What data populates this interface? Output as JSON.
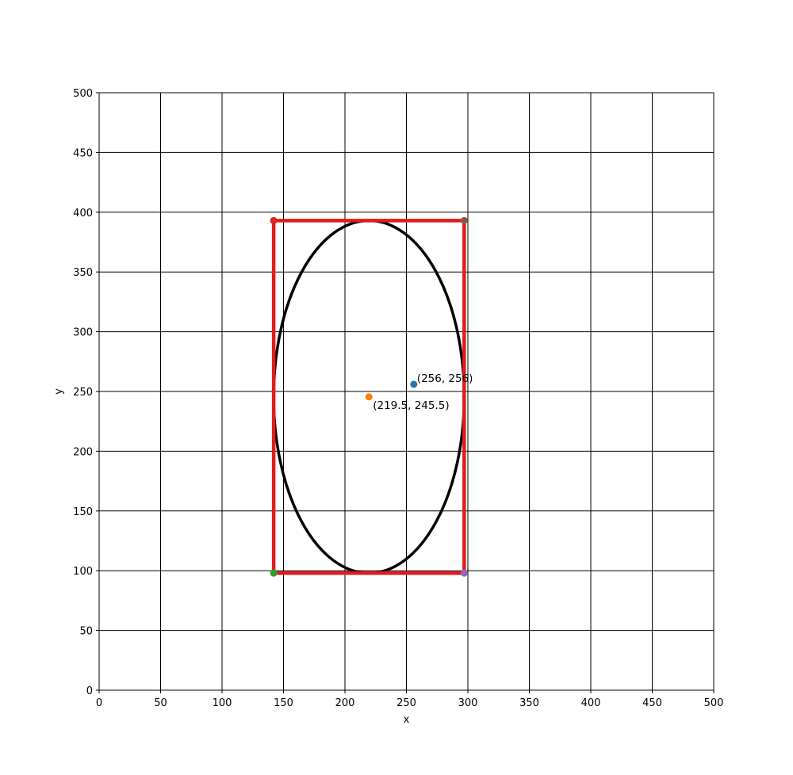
{
  "chart_data": {
    "type": "scatter",
    "title": "",
    "xlabel": "x",
    "ylabel": "y",
    "xlim": [
      0,
      500
    ],
    "ylim": [
      0,
      500
    ],
    "xticks": [
      0,
      50,
      100,
      150,
      200,
      250,
      300,
      350,
      400,
      450,
      500
    ],
    "yticks": [
      0,
      50,
      100,
      150,
      200,
      250,
      300,
      350,
      400,
      450,
      500
    ],
    "grid": true,
    "ellipse": {
      "center": [
        219.5,
        245.5
      ],
      "width": 155,
      "height": 295,
      "color": "#000000"
    },
    "rectangle": {
      "corners": [
        [
          142,
          98
        ],
        [
          297,
          98
        ],
        [
          297,
          393
        ],
        [
          142,
          393
        ]
      ],
      "color": "#e41a1c"
    },
    "corner_points": [
      {
        "x": 142,
        "y": 98,
        "color": "#2ca02c"
      },
      {
        "x": 297,
        "y": 98,
        "color": "#9467bd"
      },
      {
        "x": 297,
        "y": 393,
        "color": "#8c564b"
      },
      {
        "x": 142,
        "y": 393,
        "color": "#d62728"
      }
    ],
    "points": [
      {
        "x": 256,
        "y": 256,
        "label": "(256, 256)",
        "color": "#1f77b4"
      },
      {
        "x": 219.5,
        "y": 245.5,
        "label": "(219.5, 245.5)",
        "color": "#ff7f0e"
      }
    ]
  }
}
